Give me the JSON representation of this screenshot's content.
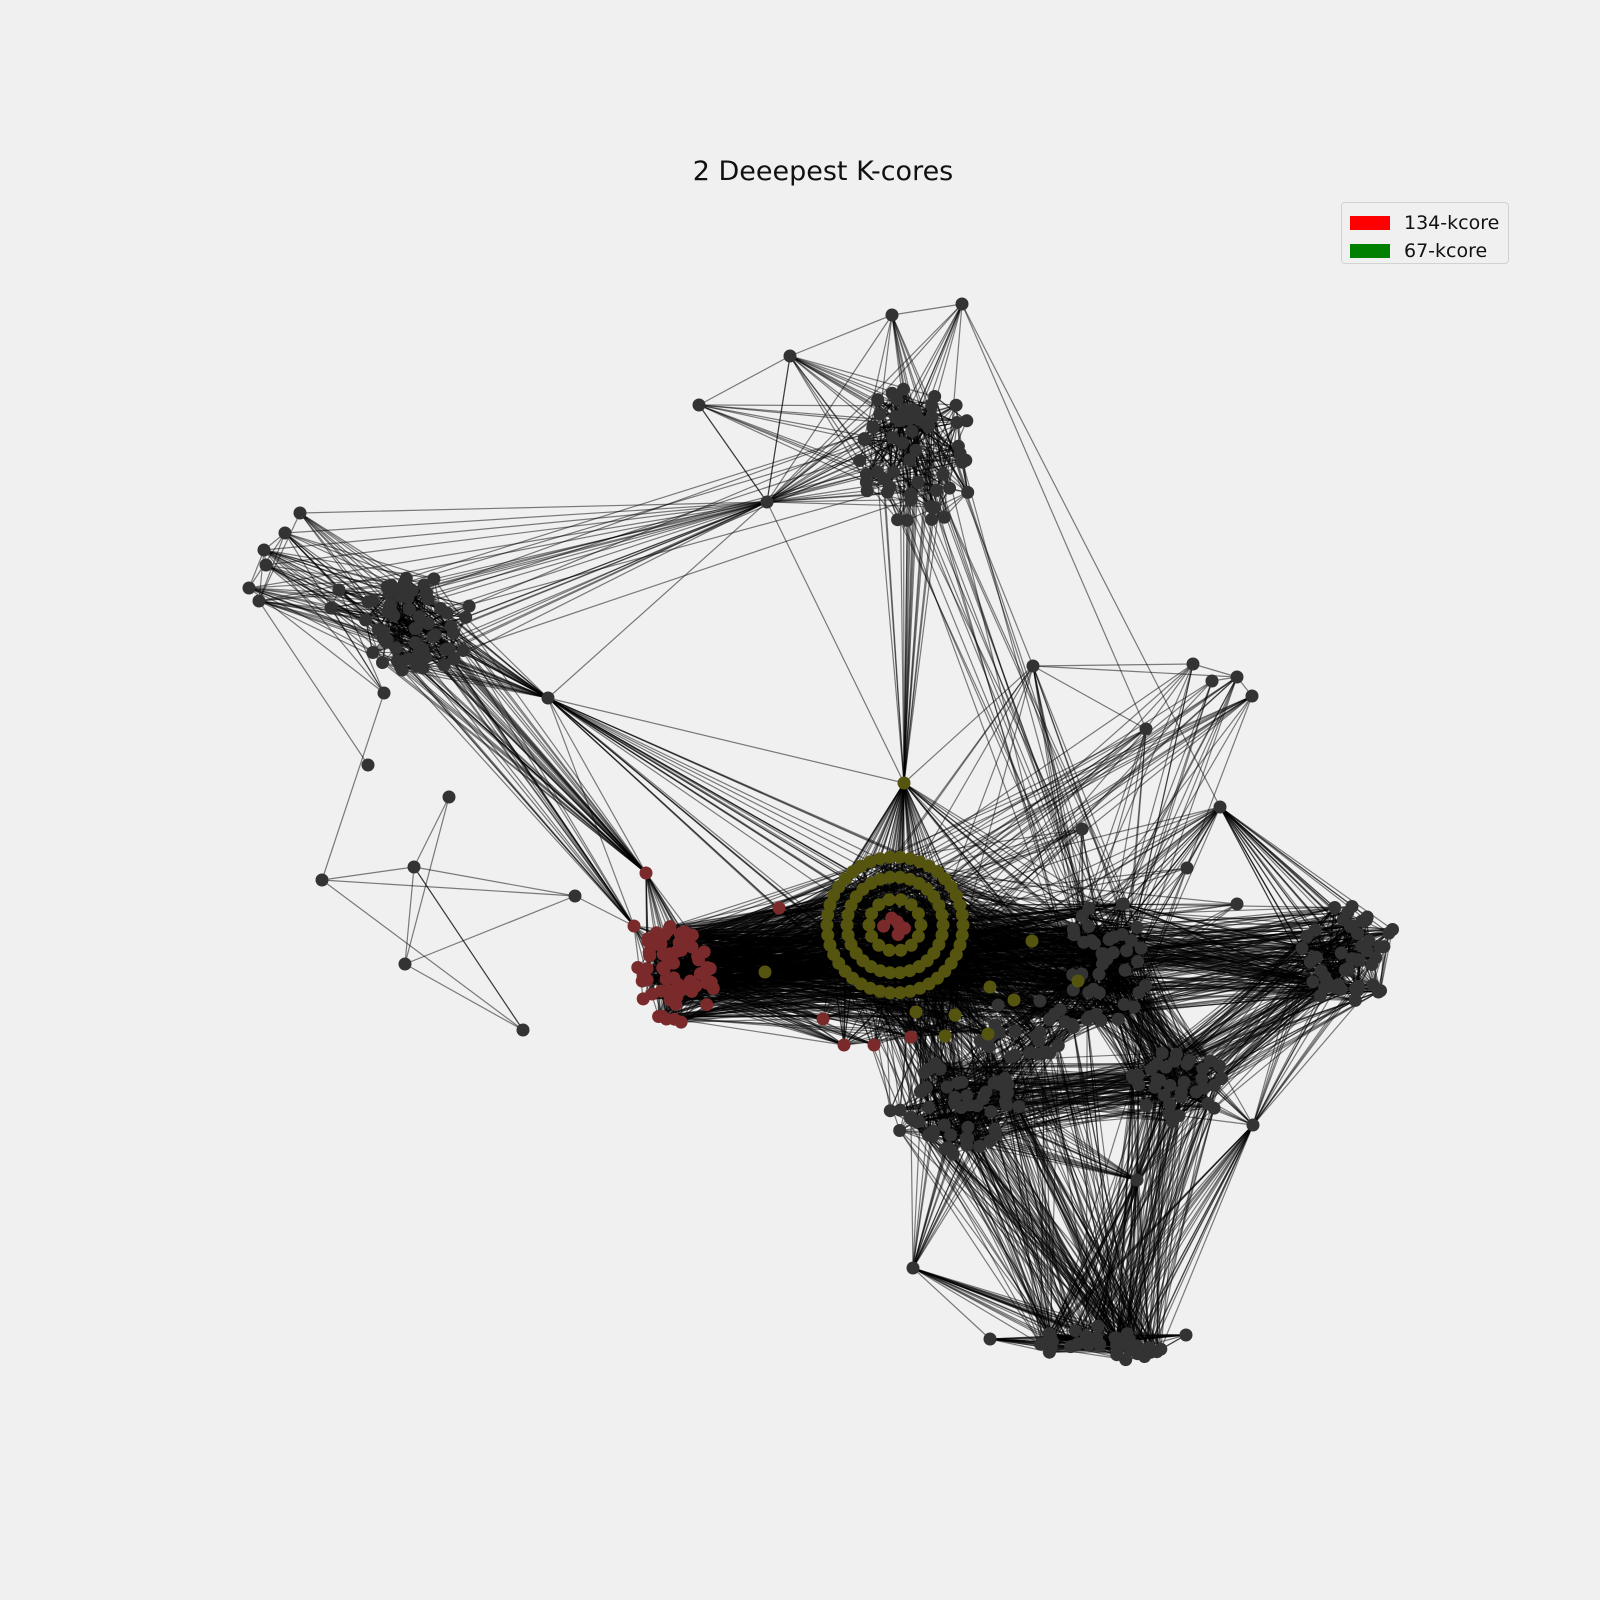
{
  "title": "2 Deeepest K-cores",
  "legend": [
    {
      "label": "134-kcore",
      "color": "#ff0000"
    },
    {
      "label": "67-kcore",
      "color": "#008000"
    }
  ],
  "colors": {
    "background": "#f0f0f0",
    "node_default": "#333333",
    "node_134kcore": "#7a2a2a",
    "node_67kcore": "#555510",
    "edge": "#000000"
  }
}
